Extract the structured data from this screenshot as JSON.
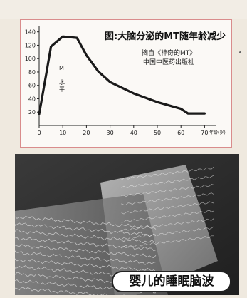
{
  "chart_data": {
    "type": "line",
    "title": "图:大脑分泌的MT随年龄减少",
    "source_line1": "摘自《神奇的MT》",
    "source_line2": "中国中医药出版社",
    "ylabel": "MT水平",
    "xlabel": "年龄(岁)",
    "x_ticks": [
      0,
      10,
      20,
      30,
      40,
      50,
      60,
      70
    ],
    "y_ticks": [
      20,
      40,
      60,
      80,
      100,
      120,
      140
    ],
    "xlim": [
      0,
      75
    ],
    "ylim": [
      0,
      145
    ],
    "grid": false,
    "series": [
      {
        "x": [
          0,
          3,
          5,
          10,
          16,
          20,
          25,
          30,
          40,
          50,
          60,
          63,
          70
        ],
        "y": [
          17,
          77,
          118,
          133,
          131,
          105,
          81,
          65,
          48,
          35,
          25,
          18,
          18
        ]
      }
    ],
    "line_color": "#1a1a1a"
  },
  "photo": {
    "caption": "婴儿的睡眠脑波",
    "background_color": "#2d2d2d"
  }
}
